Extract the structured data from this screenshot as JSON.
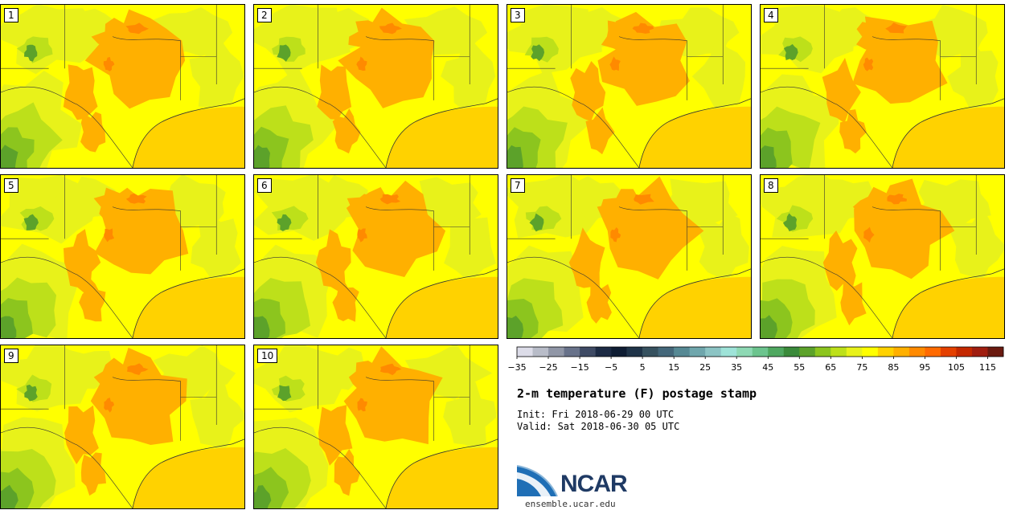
{
  "title": "2-m temperature (F) postage stamp",
  "init_text": "Init: Fri 2018-06-29 00 UTC",
  "valid_text": "Valid: Sat 2018-06-30 05 UTC",
  "logo_text": "NCAR",
  "website": "ensemble.ucar.edu",
  "panels": [
    {
      "label": "1"
    },
    {
      "label": "2"
    },
    {
      "label": "3"
    },
    {
      "label": "4"
    },
    {
      "label": "5"
    },
    {
      "label": "6"
    },
    {
      "label": "7"
    },
    {
      "label": "8"
    },
    {
      "label": "9"
    },
    {
      "label": "10"
    }
  ],
  "colorbar": {
    "tick_labels": [
      "−35",
      "−25",
      "−15",
      "−5",
      "5",
      "15",
      "25",
      "35",
      "45",
      "55",
      "65",
      "75",
      "85",
      "95",
      "105",
      "115"
    ],
    "min": -35,
    "max": 120,
    "step": 5,
    "colors": [
      "#dcdce8",
      "#b8bcc8",
      "#9096a6",
      "#68728a",
      "#3e4a64",
      "#1c2a44",
      "#0f1d33",
      "#1f3348",
      "#36515f",
      "#44677a",
      "#568994",
      "#6fa6ac",
      "#8cc4c4",
      "#9ee3d8",
      "#8ed9b4",
      "#6cc48e",
      "#4fa860",
      "#3a8a3a",
      "#5ca22a",
      "#8cc51e",
      "#bde01a",
      "#e8f21a",
      "#ffff00",
      "#ffd200",
      "#ffb000",
      "#ff8a00",
      "#ff6a00",
      "#e44000",
      "#c42800",
      "#a01e10",
      "#6a1a10"
    ]
  },
  "map_colors": {
    "land_base": "#ffff00",
    "gulf": "#ffd200",
    "warm": "#ffb000",
    "hot": "#ff8a00",
    "mild": "#e8f21a",
    "cool": "#bde01a",
    "cooler": "#8cc51e",
    "green": "#5ca22a",
    "dark_green": "#3a8a3a",
    "boundary": "#333333"
  }
}
